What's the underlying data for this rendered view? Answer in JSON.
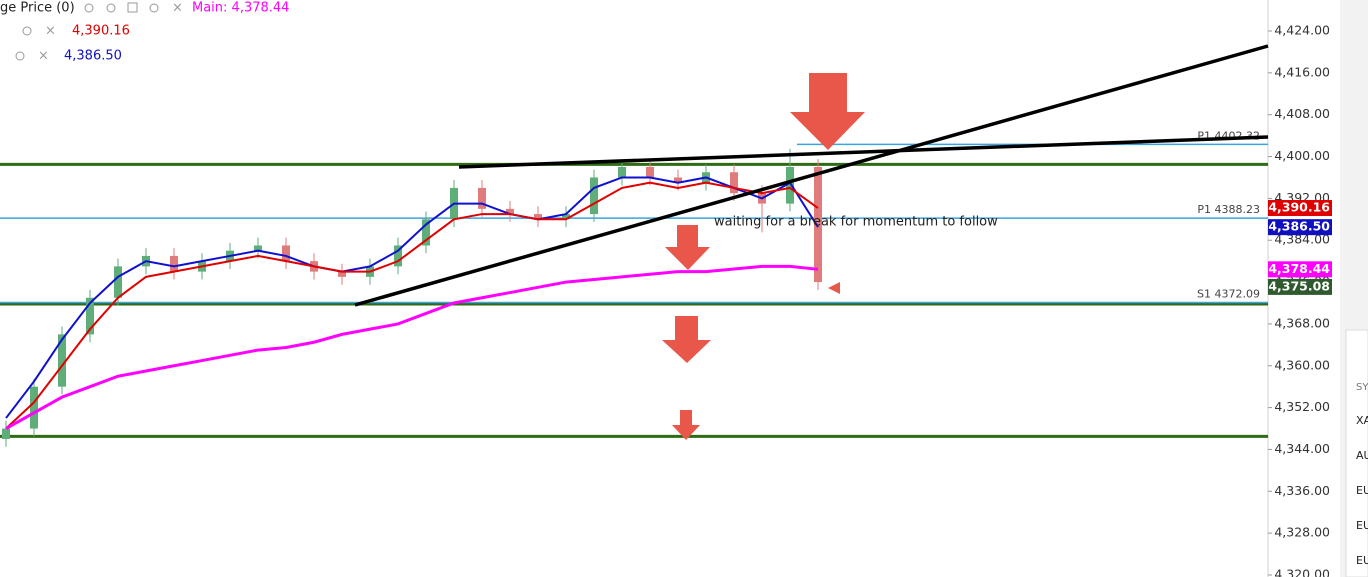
{
  "legend": {
    "indicator": "ge Price (0)",
    "main": "Main: 4,378.44",
    "line2": {
      "text": "4,390.16",
      "color": "#e00000"
    },
    "line3": {
      "text": "4,386.50",
      "color": "#1010c0"
    }
  },
  "price_axis": {
    "ylim": [
      4320,
      4424
    ],
    "yticks": [
      {
        "value": 4320,
        "label": "4,320.00"
      },
      {
        "value": 4328,
        "label": "4,328.00"
      },
      {
        "value": 4336,
        "label": "4,336.00"
      },
      {
        "value": 4344,
        "label": "4,344.00"
      },
      {
        "value": 4352,
        "label": "4,352.00"
      },
      {
        "value": 4360,
        "label": "4,360.00"
      },
      {
        "value": 4368,
        "label": "4,368.00"
      },
      {
        "value": 4376,
        "label": "4,376.00"
      },
      {
        "value": 4384,
        "label": "4,384.00"
      },
      {
        "value": 4392,
        "label": "4,392.00"
      },
      {
        "value": 4400,
        "label": "4,400.00"
      },
      {
        "value": 4408,
        "label": "4,408.00"
      },
      {
        "value": 4416,
        "label": "4,416.00"
      },
      {
        "value": 4424,
        "label": "4,424.00"
      }
    ]
  },
  "candles": [
    [
      4346,
      4349.5,
      4344.5,
      4348
    ],
    [
      4348,
      4357.5,
      4346.5,
      4356
    ],
    [
      4356,
      4367.5,
      4354.5,
      4366
    ],
    [
      4366,
      4374.5,
      4364.5,
      4373
    ],
    [
      4373,
      4380.5,
      4371.5,
      4379
    ],
    [
      4379,
      4382.5,
      4377.5,
      4381
    ],
    [
      4381,
      4382.5,
      4376.5,
      4378
    ],
    [
      4378,
      4381.5,
      4376.5,
      4380
    ],
    [
      4380,
      4383.5,
      4378.5,
      4382
    ],
    [
      4382,
      4384.5,
      4380.5,
      4383
    ],
    [
      4383,
      4384.5,
      4378.5,
      4380
    ],
    [
      4380,
      4381.5,
      4376.5,
      4378
    ],
    [
      4378,
      4379.5,
      4375.5,
      4377
    ],
    [
      4377,
      4380.5,
      4375.5,
      4379
    ],
    [
      4379,
      4384.5,
      4377.5,
      4383
    ],
    [
      4383,
      4389.5,
      4381.5,
      4388
    ],
    [
      4388,
      4395.5,
      4386.5,
      4394
    ],
    [
      4394,
      4395.5,
      4388.5,
      4390
    ],
    [
      4390,
      4391.5,
      4387.5,
      4389
    ],
    [
      4389,
      4390.5,
      4386.5,
      4388
    ],
    [
      4388,
      4390.5,
      4386.5,
      4389
    ],
    [
      4389,
      4397.5,
      4387.5,
      4396
    ],
    [
      4396,
      4399.5,
      4394.5,
      4398
    ],
    [
      4398,
      4399.5,
      4394.5,
      4396
    ],
    [
      4396,
      4397.5,
      4393.5,
      4395
    ],
    [
      4395,
      4398.5,
      4393.5,
      4397
    ],
    [
      4397,
      4398.5,
      4391.5,
      4393
    ],
    [
      4393,
      4394.5,
      4385.5,
      4391
    ],
    [
      4391,
      4401.5,
      4389.5,
      4398
    ],
    [
      4398,
      4399.5,
      4374.5,
      4376
    ]
  ],
  "moving_averages": [
    {
      "color": "#1010d0",
      "values": [
        4350,
        4357,
        4365,
        4372,
        4377,
        4380,
        4379,
        4380,
        4381,
        4382,
        4381,
        4379,
        4378,
        4379,
        4382,
        4387,
        4391,
        4391,
        4389,
        4388,
        4389,
        4394,
        4396,
        4396,
        4395,
        4396,
        4394,
        4392,
        4395,
        4386.5
      ]
    },
    {
      "color": "#e00000",
      "values": [
        4348,
        4353,
        4360,
        4367,
        4373,
        4377,
        4378,
        4379,
        4380,
        4381,
        4380,
        4379,
        4378,
        4378,
        4380,
        4384,
        4388,
        4389,
        4389,
        4388,
        4388,
        4391,
        4394,
        4395,
        4394,
        4395,
        4394,
        4393,
        4394,
        4390.16
      ]
    },
    {
      "color": "#ff00ff",
      "values": [
        4348,
        4351,
        4354,
        4356,
        4358,
        4359,
        4360,
        4361,
        4362,
        4363,
        4363.5,
        4364.5,
        4366,
        4367,
        4368,
        4370,
        4372,
        4373,
        4374,
        4375,
        4376,
        4376.5,
        4377,
        4377.5,
        4378,
        4378,
        4378.5,
        4379,
        4379,
        4378.44
      ]
    }
  ],
  "levels": [
    {
      "value": 4398.5,
      "color": "#2e6b12"
    },
    {
      "value": 4371.8,
      "color": "#2e6b12"
    },
    {
      "value": 4346.5,
      "color": "#2e6b12"
    }
  ],
  "pivots": [
    {
      "value": 4402.32,
      "label": "P1 4402.32"
    },
    {
      "value": 4388.23,
      "label": "P1 4388.23"
    },
    {
      "value": 4372.09,
      "label": "S1 4372.09"
    }
  ],
  "price_badges": [
    {
      "value": 4390.16,
      "label": "4,390.16",
      "color": "#e00000"
    },
    {
      "value": 4386.5,
      "label": "4,386.50",
      "color": "#1010c0"
    },
    {
      "value": 4378.44,
      "label": "4,378.44",
      "color": "#ff00ff"
    },
    {
      "value": 4375.08,
      "label": "4,375.08",
      "color": "#2e5a2e"
    }
  ],
  "annotation": "waiting  for a break for momentum to follow",
  "watchlist": {
    "header": "SY",
    "rows": [
      "XA",
      "AU",
      "EU",
      "EU",
      "EU"
    ]
  }
}
